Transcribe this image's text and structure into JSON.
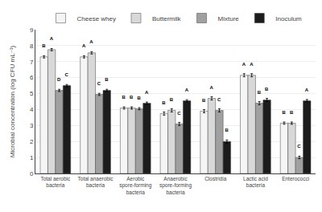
{
  "chart_data": {
    "type": "bar",
    "categories": [
      "Total aerobic\nbacteria",
      "Total anaerobic\nbacteria",
      "Aerobic\nspore-forming\nbacteria",
      "Anaerobic\nspore-forming\nbacteria",
      "Clostridia",
      "Lactic acid\nbacteria",
      "Enterococci"
    ],
    "ylabel": "Microbial concentration (log CFU mL⁻¹)",
    "series": [
      {
        "name": "Cheese whey",
        "color": "#f5f5f5",
        "values": [
          7.3,
          7.3,
          4.1,
          3.75,
          3.9,
          6.15,
          3.15
        ],
        "errors": [
          0.07,
          0.07,
          0.07,
          0.1,
          0.1,
          0.1,
          0.07
        ],
        "labels": [
          "B",
          "A",
          "B",
          "B",
          "B",
          "A",
          "B"
        ]
      },
      {
        "name": "Buttermilk",
        "color": "#d8d8d8",
        "values": [
          7.75,
          7.55,
          4.1,
          3.95,
          4.7,
          6.15,
          3.15
        ],
        "errors": [
          0.07,
          0.07,
          0.07,
          0.1,
          0.1,
          0.1,
          0.07
        ],
        "labels": [
          "A",
          "A",
          "B",
          "B",
          "A",
          "A",
          "B"
        ]
      },
      {
        "name": "Mixture",
        "color": "#a0a0a0",
        "values": [
          5.2,
          4.95,
          4.05,
          3.1,
          3.95,
          4.4,
          1.0
        ],
        "errors": [
          0.07,
          0.07,
          0.07,
          0.1,
          0.1,
          0.1,
          0.08
        ],
        "labels": [
          "D",
          "C",
          "B",
          "C",
          "C",
          "B",
          "C"
        ]
      },
      {
        "name": "Inoculum",
        "color": "#1c1c1c",
        "values": [
          5.5,
          5.2,
          4.4,
          4.55,
          2.0,
          4.6,
          4.55
        ],
        "errors": [
          0.07,
          0.07,
          0.07,
          0.07,
          0.1,
          0.1,
          0.08
        ],
        "labels": [
          "C",
          "B",
          "A",
          "A",
          "B",
          "B",
          "A"
        ]
      }
    ],
    "ylim": [
      0,
      9
    ],
    "yticks": [
      0,
      1,
      2,
      3,
      4,
      5,
      6,
      7,
      8,
      9
    ],
    "grid": true,
    "legend": "top"
  }
}
